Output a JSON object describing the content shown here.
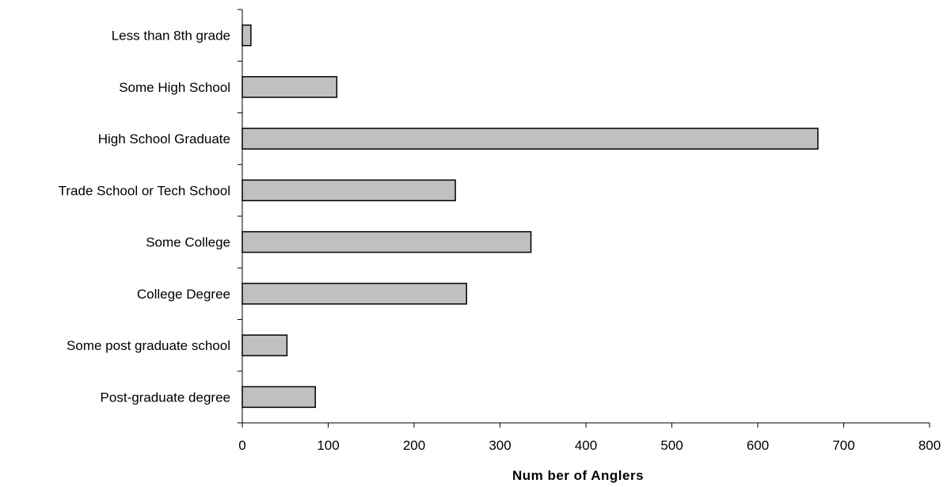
{
  "chart_data": {
    "type": "bar",
    "orientation": "horizontal",
    "categories": [
      "Less than 8th grade",
      "Some High School",
      "High School Graduate",
      "Trade School or Tech School",
      "Some College",
      "College Degree",
      "Some post graduate school",
      "Post-graduate degree"
    ],
    "values": [
      10,
      110,
      670,
      248,
      336,
      261,
      52,
      85
    ],
    "xlabel": "Num ber of Anglers",
    "ylabel": "",
    "xlim": [
      0,
      800
    ],
    "xticks": [
      0,
      100,
      200,
      300,
      400,
      500,
      600,
      700,
      800
    ],
    "grid": false,
    "legend": "none",
    "bar_color": "#c0c0c0",
    "bar_edge_color": "#000000"
  }
}
